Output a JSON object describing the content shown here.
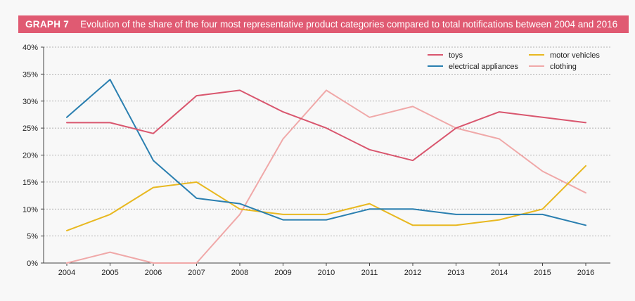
{
  "header": {
    "graph_label": "GRAPH 7",
    "title": "Evolution of the share of the four most representative product categories compared to total notifications between 2004 and 2016"
  },
  "chart_data": {
    "type": "line",
    "x": [
      "2004",
      "2005",
      "2006",
      "2007",
      "2008",
      "2009",
      "2010",
      "2011",
      "2012",
      "2013",
      "2014",
      "2015",
      "2016"
    ],
    "y_ticks": [
      "0%",
      "5%",
      "10%",
      "15%",
      "20%",
      "25%",
      "30%",
      "35%",
      "40%"
    ],
    "ylim": [
      0,
      40
    ],
    "ylabel": "",
    "xlabel": "",
    "grid": "horizontal dotted",
    "legend_position": "top-right",
    "series": [
      {
        "name": "toys",
        "color": "#d9566e",
        "values": [
          26,
          26,
          24,
          31,
          32,
          28,
          25,
          21,
          19,
          25,
          28,
          27,
          26
        ]
      },
      {
        "name": "electrical appliances",
        "color": "#2a7fb0",
        "values": [
          27,
          34,
          19,
          12,
          11,
          8,
          8,
          10,
          10,
          9,
          9,
          9,
          7
        ]
      },
      {
        "name": "motor vehicles",
        "color": "#e8b820",
        "values": [
          6,
          9,
          14,
          15,
          10,
          9,
          9,
          11,
          7,
          7,
          8,
          10,
          18
        ]
      },
      {
        "name": "clothing",
        "color": "#f0a8a8",
        "values": [
          0,
          2,
          0,
          0,
          9,
          23,
          32,
          27,
          29,
          25,
          23,
          17,
          13
        ]
      }
    ]
  }
}
